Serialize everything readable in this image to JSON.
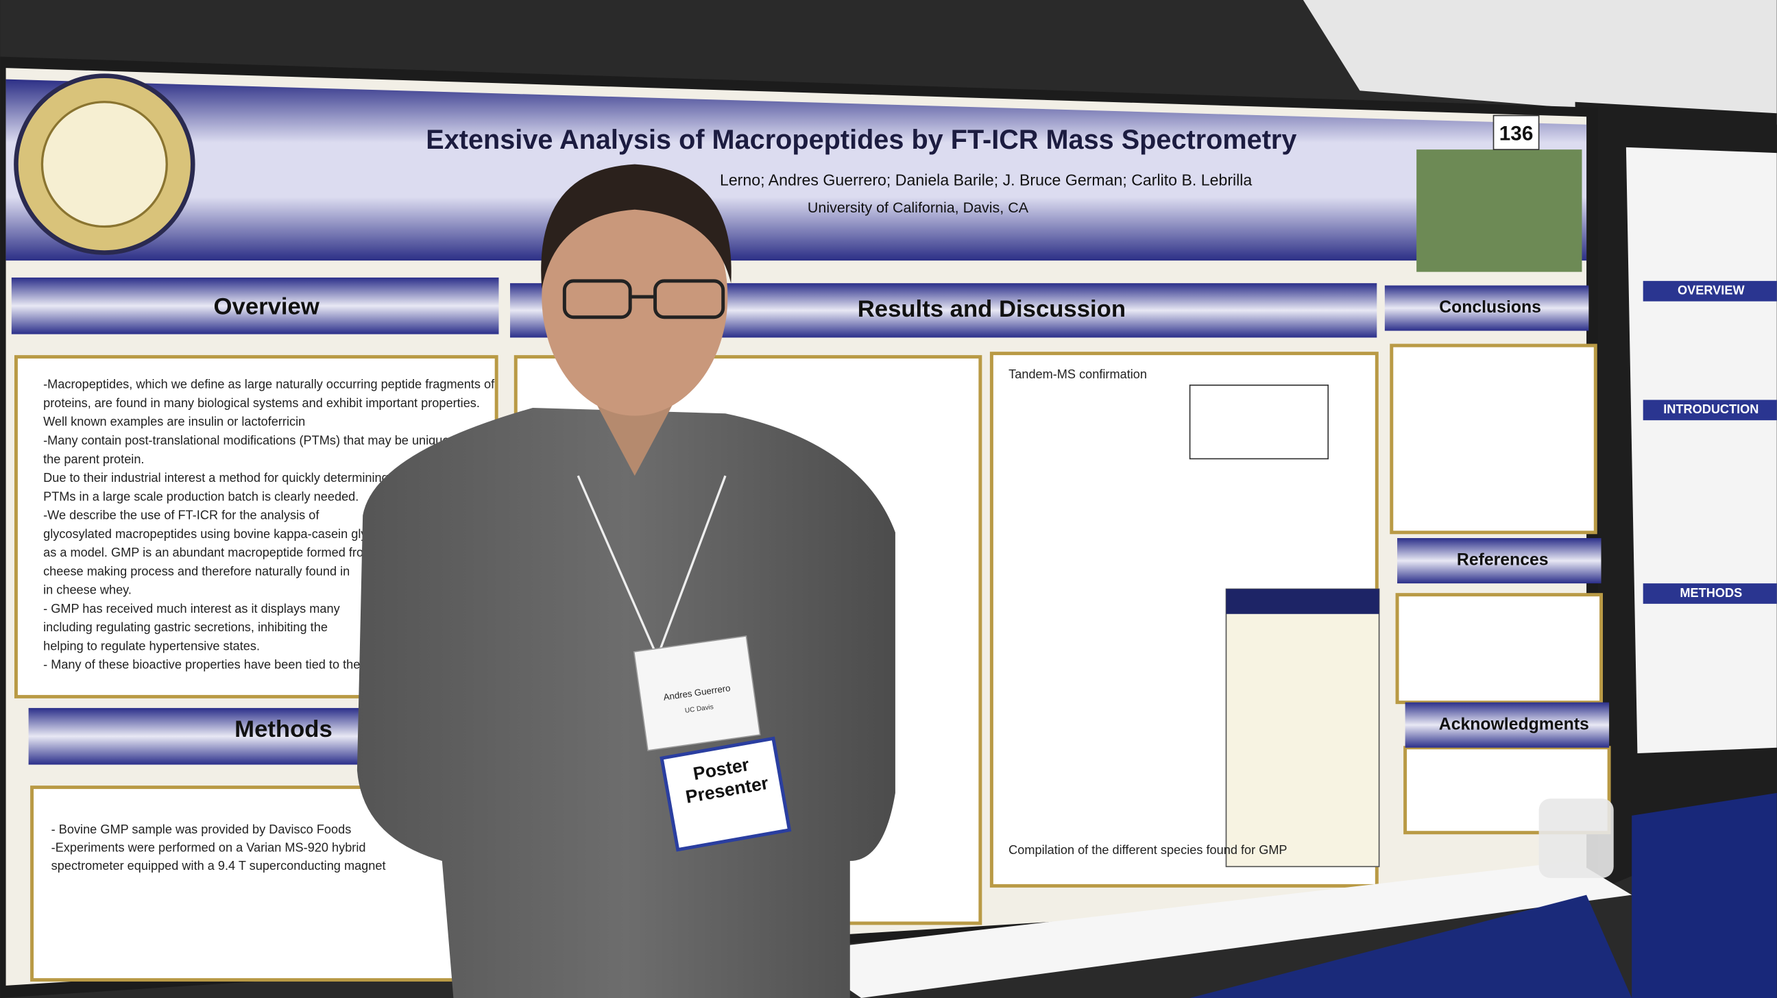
{
  "poster": {
    "title": "Extensive Analysis of Macropeptides by FT-ICR Mass Spectrometry",
    "authors": "Lerno; Andres Guerrero; Daniela Barile; J. Bruce German; Carlito B. Lebrilla",
    "affiliation": "University of California, Davis, CA",
    "booth_number": "136",
    "sections": [
      {
        "heading": "Overview",
        "lines": [
          "-Macropeptides, which we define as large naturally occurring peptide fragments of",
          "proteins, are found in many biological systems and exhibit important properties.",
          "Well known examples are insulin or lactoferricin",
          "-Many contain post-translational modifications (PTMs) that may be unique from",
          "the parent protein.",
          "Due to their industrial interest a method for quickly determining the",
          "PTMs in a large scale production batch is clearly needed.",
          "-We describe the use of FT-ICR for the analysis of",
          "glycosylated macropeptides using bovine kappa-casein glycomacropeptide",
          "as a model. GMP is an abundant macropeptide formed from",
          "cheese making process and therefore naturally found in",
          "in cheese whey.",
          "- GMP has received much interest as it displays many",
          "including regulating gastric secretions, inhibiting the",
          "helping to regulate hypertensive states.",
          "- Many of these bioactive properties have been tied to the"
        ]
      },
      {
        "heading": "Results and Discussion",
        "lines": [
          "Tandem-MS confirmation",
          "Compilation of the different species found for GMP"
        ]
      },
      {
        "heading": "Conclusions",
        "lines": []
      },
      {
        "heading": "References",
        "lines": []
      },
      {
        "heading": "Acknowledgments",
        "lines": []
      },
      {
        "heading": "Methods",
        "lines": [
          "- Bovine GMP sample was provided by Davisco Foods",
          "-Experiments were performed on a Varian MS-920 hybrid",
          "spectrometer equipped with a 9.4 T superconducting magnet"
        ]
      }
    ]
  },
  "right_poster": {
    "headings": [
      "OVERVIEW",
      "INTRODUCTION",
      "METHODS"
    ]
  },
  "badge": {
    "name": "Andres Guerrero",
    "affiliation": "UC Davis",
    "ribbon": "Poster Presenter"
  }
}
